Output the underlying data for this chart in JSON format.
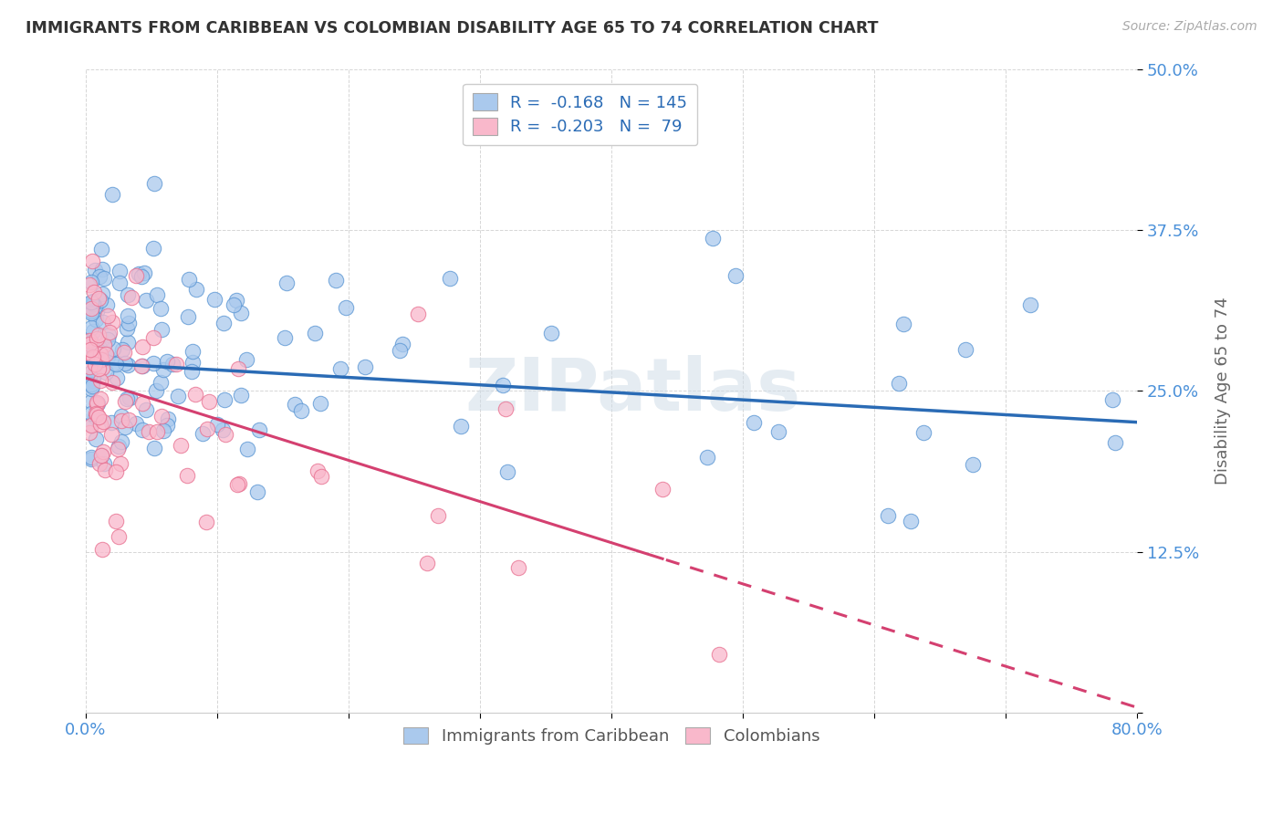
{
  "title": "IMMIGRANTS FROM CARIBBEAN VS COLOMBIAN DISABILITY AGE 65 TO 74 CORRELATION CHART",
  "source": "Source: ZipAtlas.com",
  "ylabel": "Disability Age 65 to 74",
  "x_min": 0.0,
  "x_max": 0.8,
  "y_min": 0.0,
  "y_max": 0.5,
  "series1_name": "Immigrants from Caribbean",
  "series1_color": "#aac9ed",
  "series1_edge_color": "#5a96d4",
  "series1_line_color": "#2a6bb5",
  "series1_intercept": 0.272,
  "series1_slope": -0.058,
  "series2_name": "Colombians",
  "series2_color": "#f9b8cb",
  "series2_edge_color": "#e87090",
  "series2_line_color": "#d44070",
  "series2_intercept": 0.26,
  "series2_slope": -0.32,
  "legend_text1": "R =  -0.168   N = 145",
  "legend_text2": "R =  -0.203   N =  79",
  "watermark": "ZIPatlas",
  "background_color": "#ffffff",
  "grid_color": "#cccccc",
  "title_color": "#333333",
  "axis_label_color": "#666666",
  "tick_color": "#4a90d9",
  "seed1": 42,
  "seed2": 7
}
